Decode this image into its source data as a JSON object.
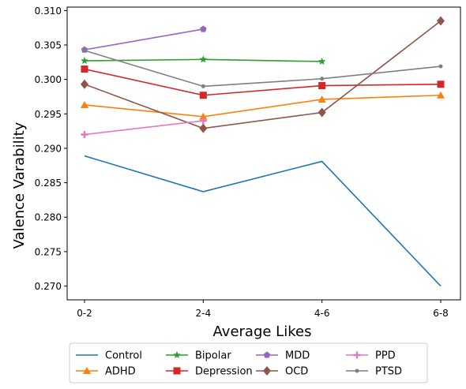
{
  "chart_data": {
    "type": "line",
    "xlabel": "Average Likes",
    "ylabel": "Valence Varability",
    "categories": [
      "0-2",
      "2-4",
      "4-6",
      "6-8"
    ],
    "ylim": [
      0.268,
      0.3105
    ],
    "yticks": [
      0.27,
      0.275,
      0.28,
      0.285,
      0.29,
      0.295,
      0.3,
      0.305,
      0.31
    ],
    "legend_placement": "bottom-center-outside",
    "grid": false,
    "series": [
      {
        "name": "Control",
        "color": "#1f77b4",
        "marker": "none",
        "values": [
          0.2889,
          0.2837,
          0.2881,
          0.27
        ]
      },
      {
        "name": "ADHD",
        "color": "#ff7f0e",
        "marker": "triangle",
        "values": [
          0.2963,
          0.2946,
          0.2971,
          0.2977
        ]
      },
      {
        "name": "Bipolar",
        "color": "#2ca02c",
        "marker": "star",
        "values": [
          0.3027,
          0.3029,
          0.3026,
          null
        ]
      },
      {
        "name": "Depression",
        "color": "#d62728",
        "marker": "square",
        "values": [
          0.3015,
          0.2977,
          0.2991,
          0.2993
        ]
      },
      {
        "name": "MDD",
        "color": "#9467bd",
        "marker": "pentagon",
        "values": [
          0.3043,
          0.3073,
          null,
          null
        ]
      },
      {
        "name": "OCD",
        "color": "#8c564b",
        "marker": "diamond",
        "values": [
          0.2993,
          0.2929,
          0.2952,
          0.3085
        ]
      },
      {
        "name": "PPD",
        "color": "#e377c2",
        "marker": "plus",
        "values": [
          0.292,
          0.294,
          null,
          null
        ]
      },
      {
        "name": "PTSD",
        "color": "#7f7f7f",
        "marker": "dot",
        "values": [
          0.3042,
          0.299,
          0.3001,
          0.3019
        ]
      }
    ]
  }
}
